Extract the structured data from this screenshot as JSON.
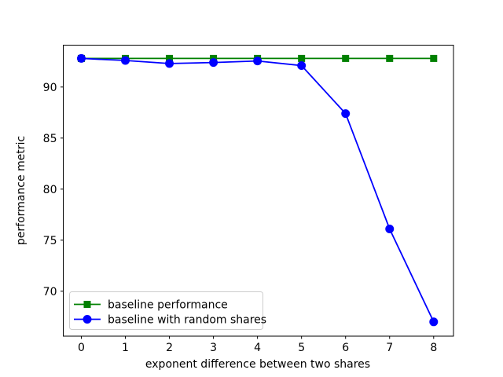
{
  "figure": {
    "background": "#ffffff",
    "spine_color": "#000000",
    "tick_color": "#000000"
  },
  "chart_data": {
    "type": "line",
    "title": "",
    "xlabel": "exponent difference between two shares",
    "ylabel": "performance metric",
    "x": [
      0,
      1,
      2,
      3,
      4,
      5,
      6,
      7,
      8
    ],
    "xtick_labels": [
      "0",
      "1",
      "2",
      "3",
      "4",
      "5",
      "6",
      "7",
      "8"
    ],
    "ytick_values": [
      70,
      75,
      80,
      85,
      90
    ],
    "xlim": [
      -0.41,
      8.45
    ],
    "ylim": [
      65.6,
      94.1
    ],
    "grid": false,
    "legend": {
      "position": "lower left",
      "border_color": "#cccccc",
      "background": "#ffffff"
    },
    "series": [
      {
        "name": "baseline performance",
        "color": "#008000",
        "marker": "square",
        "values": [
          92.8,
          92.8,
          92.8,
          92.8,
          92.8,
          92.8,
          92.8,
          92.8,
          92.8
        ]
      },
      {
        "name": "baseline with random shares",
        "color": "#0000ff",
        "marker": "circle",
        "values": [
          92.8,
          92.6,
          92.3,
          92.4,
          92.55,
          92.1,
          87.4,
          76.1,
          67.0
        ]
      }
    ]
  }
}
